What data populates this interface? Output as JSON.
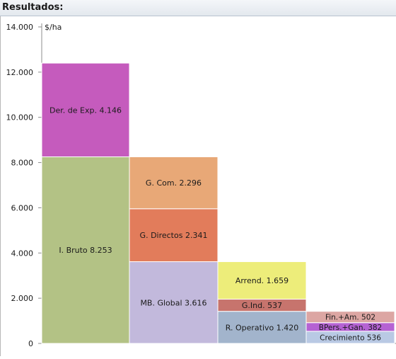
{
  "header": {
    "title": "Resultados:"
  },
  "chart_data": {
    "type": "bar",
    "title": "",
    "ylabel": "$/ha",
    "ylim": [
      0,
      14000
    ],
    "yticks": [
      0,
      2000,
      4000,
      6000,
      8000,
      10000,
      12000,
      14000
    ],
    "ytick_labels": [
      "0",
      "2.000",
      "4.000",
      "6.000",
      "8.000",
      "10.000",
      "12.000",
      "14.000"
    ],
    "grid": false,
    "legend": "none",
    "stacked": true,
    "columns": [
      {
        "segments": [
          {
            "label": "I. Bruto 8.253",
            "value": 8253,
            "color": "#b3c285"
          },
          {
            "label": "Der. de Exp. 4.146",
            "value": 4146,
            "color": "#c55bbd"
          }
        ]
      },
      {
        "segments": [
          {
            "label": "MB. Global 3.616",
            "value": 3616,
            "color": "#c2b9dc"
          },
          {
            "label": "G. Directos 2.341",
            "value": 2341,
            "color": "#e27c5b"
          },
          {
            "label": "G. Com. 2.296",
            "value": 2296,
            "color": "#e8a877"
          }
        ]
      },
      {
        "segments": [
          {
            "label": "R. Operativo 1.420",
            "value": 1420,
            "color": "#a2b4cc"
          },
          {
            "label": "G.Ind. 537",
            "value": 537,
            "color": "#c7746d"
          },
          {
            "label": "Arrend. 1.659",
            "value": 1659,
            "color": "#eded7a"
          }
        ]
      },
      {
        "segments": [
          {
            "label": "Crecimiento 536",
            "value": 536,
            "color": "#b9c9e4"
          },
          {
            "label": "BPers.+Gan. 382",
            "value": 382,
            "color": "#b562d3"
          },
          {
            "label": "Fin.+Am. 502",
            "value": 502,
            "color": "#dca6a3"
          }
        ]
      }
    ]
  }
}
